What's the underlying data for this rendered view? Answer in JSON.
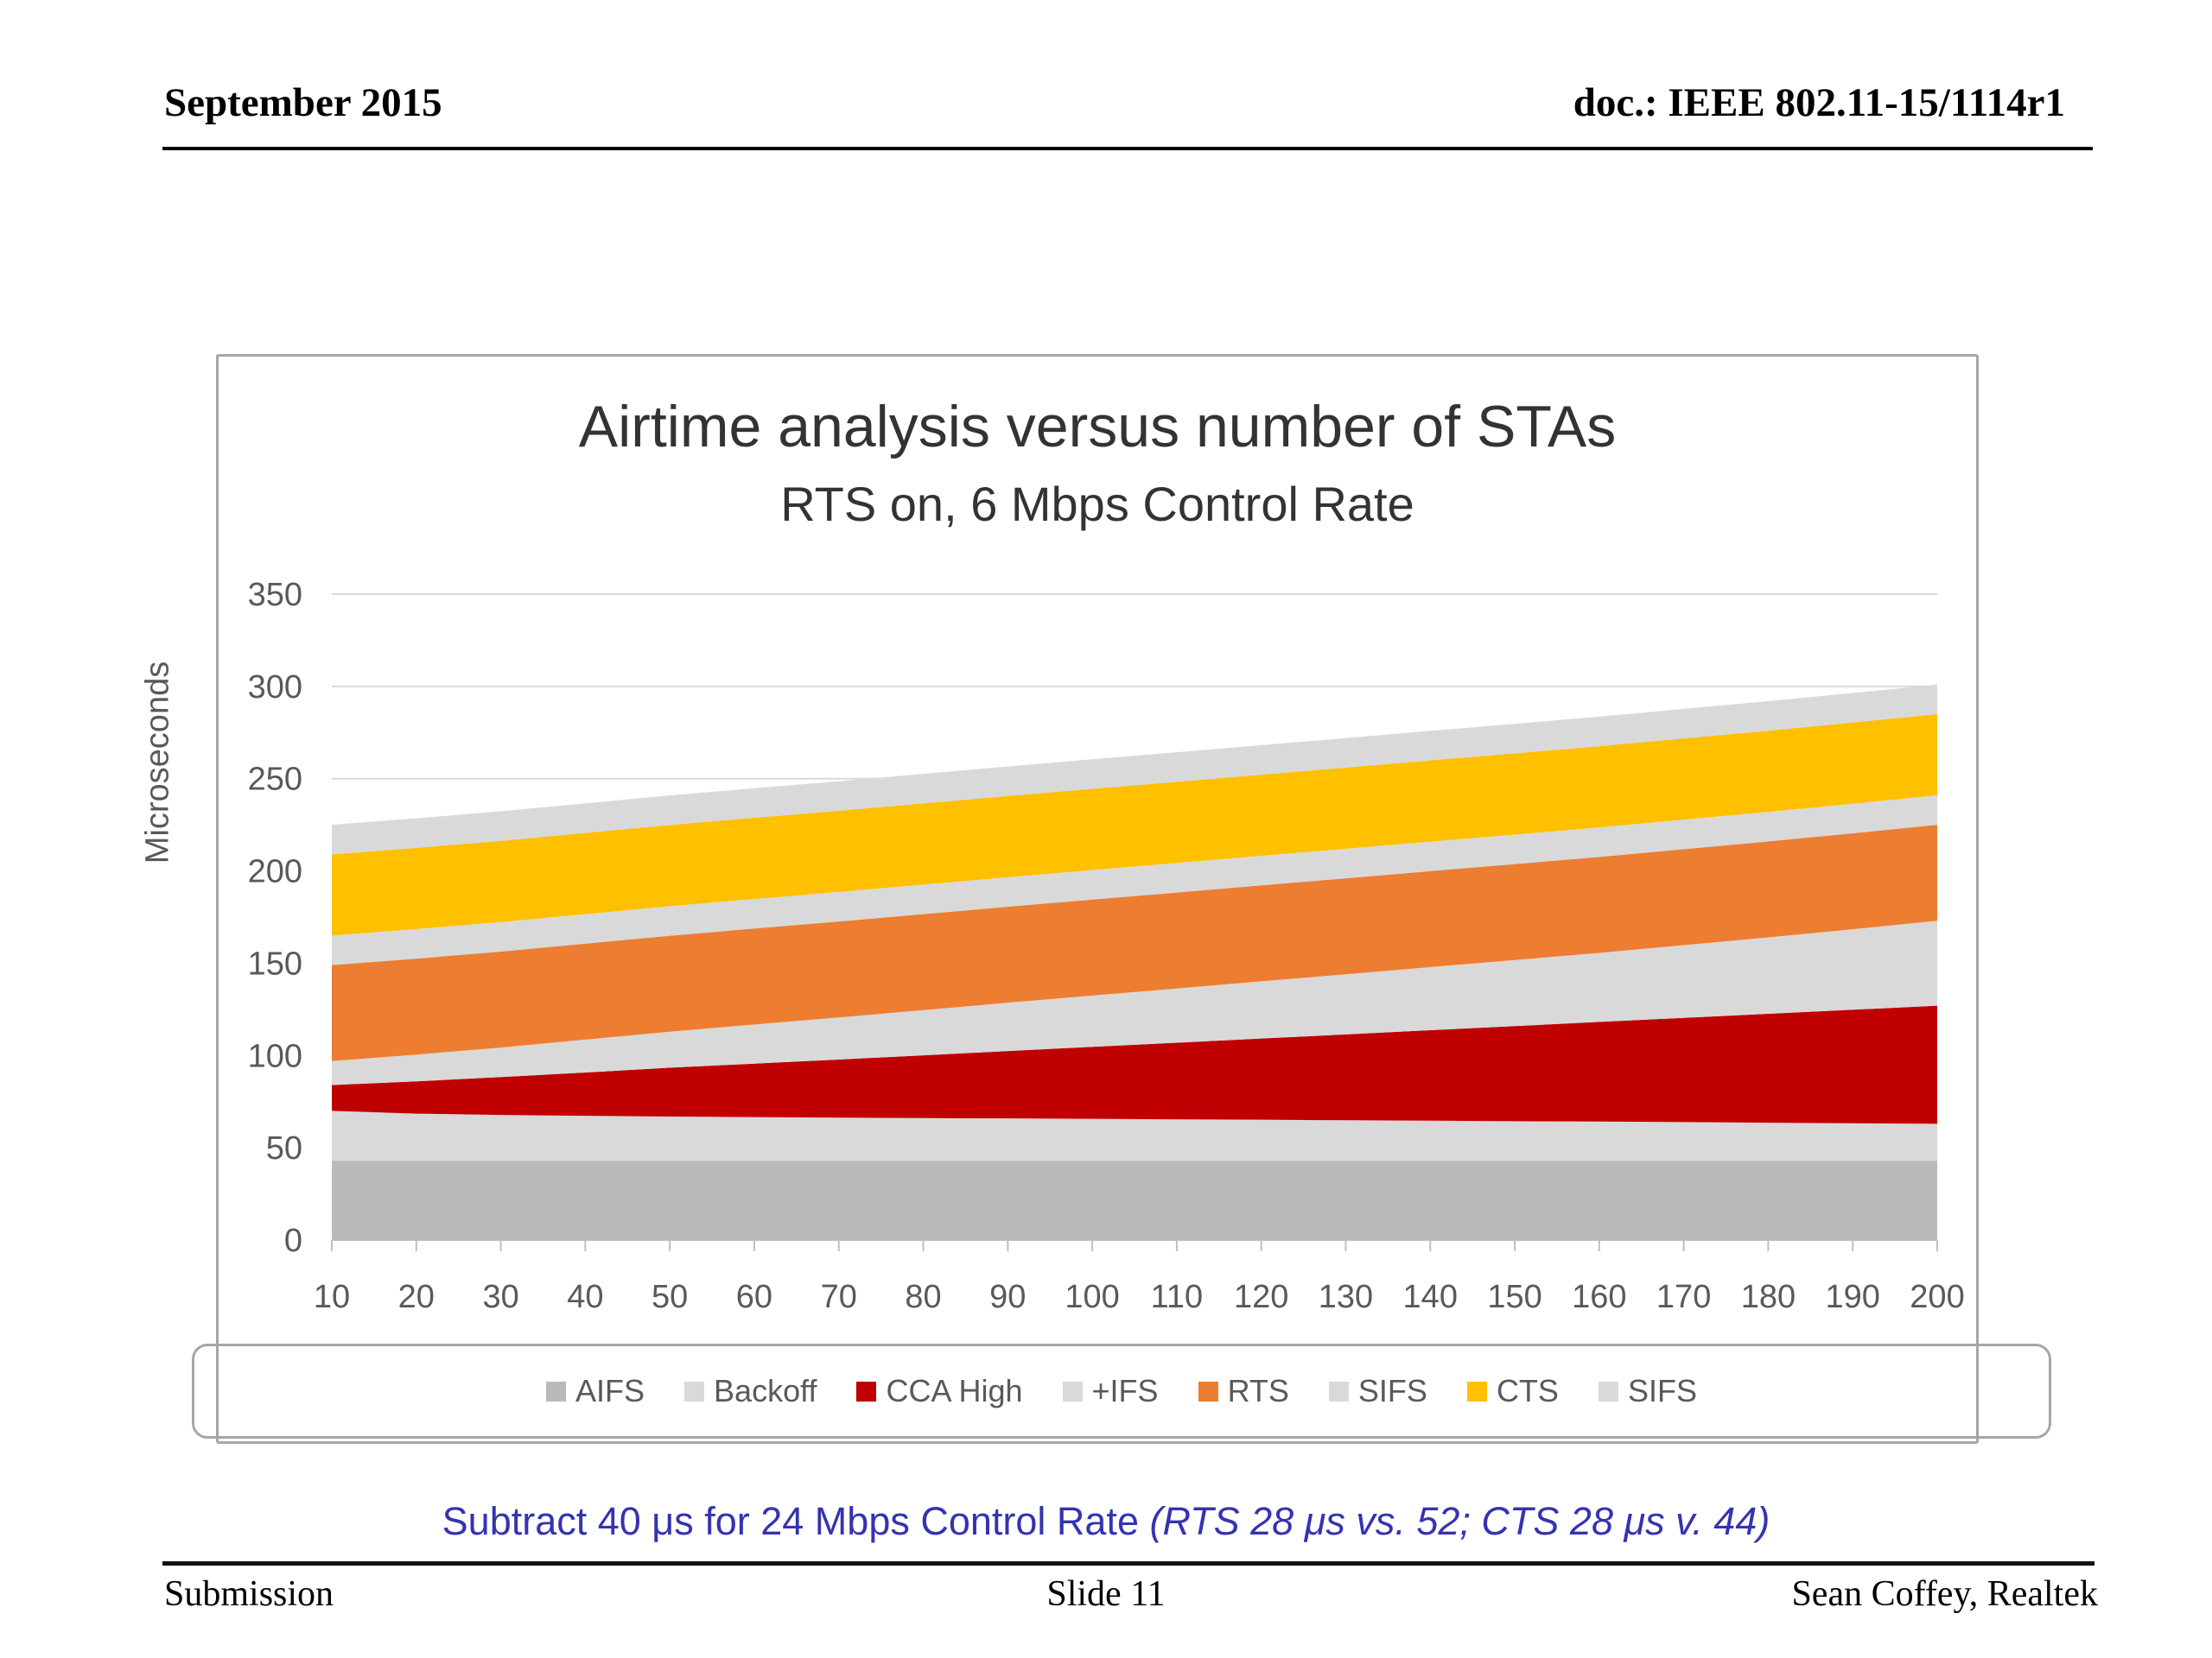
{
  "header": {
    "date": "September 2015",
    "doc": "doc.: IEEE 802.11-15/1114r1"
  },
  "chart_data": {
    "type": "area",
    "stacked": true,
    "title": "Airtime analysis versus number of STAs",
    "subtitle": "RTS on, 6 Mbps Control Rate",
    "ylabel": "Microseconds",
    "xlabel": "",
    "ylim": [
      0,
      350
    ],
    "yticks": [
      0,
      50,
      100,
      150,
      200,
      250,
      300,
      350
    ],
    "grid": "horizontal",
    "legend_position": "bottom",
    "x": [
      10,
      20,
      30,
      40,
      50,
      60,
      70,
      80,
      90,
      100,
      110,
      120,
      130,
      140,
      150,
      160,
      170,
      180,
      190,
      200
    ],
    "series": [
      {
        "name": "AIFS",
        "color": "#b9b9b9",
        "values": [
          43,
          43,
          43,
          43,
          43,
          43,
          43,
          43,
          43,
          43,
          43,
          43,
          43,
          43,
          43,
          43,
          43,
          43,
          43,
          43
        ]
      },
      {
        "name": "Backoff",
        "color": "#d9d9d9",
        "values": [
          27,
          25.5,
          24.8,
          24.3,
          23.9,
          23.6,
          23.3,
          23.1,
          22.9,
          22.7,
          22.4,
          22.2,
          21.9,
          21.7,
          21.4,
          21.2,
          20.9,
          20.6,
          20.3,
          20
        ]
      },
      {
        "name": "CCA High",
        "color": "#c00000",
        "values": [
          14,
          17.5,
          20.5,
          23.5,
          26.5,
          29,
          31.5,
          34,
          36.5,
          39,
          41.5,
          44,
          46.5,
          49,
          51.5,
          54,
          56.5,
          59,
          61.5,
          64
        ]
      },
      {
        "name": "+IFS",
        "color": "#d9d9d9",
        "values": [
          13,
          14.5,
          16,
          17.8,
          19.5,
          21.2,
          22.8,
          24.5,
          26.2,
          27.8,
          29.4,
          31,
          32.6,
          34.2,
          35.8,
          37.4,
          39.4,
          41.4,
          43.6,
          46
        ]
      },
      {
        "name": "RTS",
        "color": "#ed7d31",
        "values": [
          52,
          52,
          52,
          52,
          52,
          52,
          52,
          52,
          52,
          52,
          52,
          52,
          52,
          52,
          52,
          52,
          52,
          52,
          52,
          52
        ]
      },
      {
        "name": "SIFS",
        "color": "#d9d9d9",
        "values": [
          16,
          16,
          16,
          16,
          16,
          16,
          16,
          16,
          16,
          16,
          16,
          16,
          16,
          16,
          16,
          16,
          16,
          16,
          16,
          16
        ]
      },
      {
        "name": "CTS",
        "color": "#ffc000",
        "values": [
          44,
          44,
          44,
          44,
          44,
          44,
          44,
          44,
          44,
          44,
          44,
          44,
          44,
          44,
          44,
          44,
          44,
          44,
          44,
          44
        ]
      },
      {
        "name": "SIFS",
        "color": "#d9d9d9",
        "values": [
          16,
          16,
          16,
          16,
          16,
          16,
          16,
          16,
          16,
          16,
          16,
          16,
          16,
          16,
          16,
          16,
          16,
          16,
          16,
          16
        ]
      }
    ],
    "colors": {
      "grid": "#d9d9d9",
      "axis": "#bfbfbf",
      "tick_text": "#595959",
      "title_text": "#333333",
      "frame_border": "#a6a6a6"
    }
  },
  "note": {
    "prefix": "Subtract 40 μs for 24 Mbps Control Rate ",
    "italic": "(RTS 28 μs vs. 52; CTS 28 μs v. 44)"
  },
  "footer": {
    "left": "Submission",
    "center": "Slide 11",
    "right": "Sean Coffey, Realtek"
  }
}
